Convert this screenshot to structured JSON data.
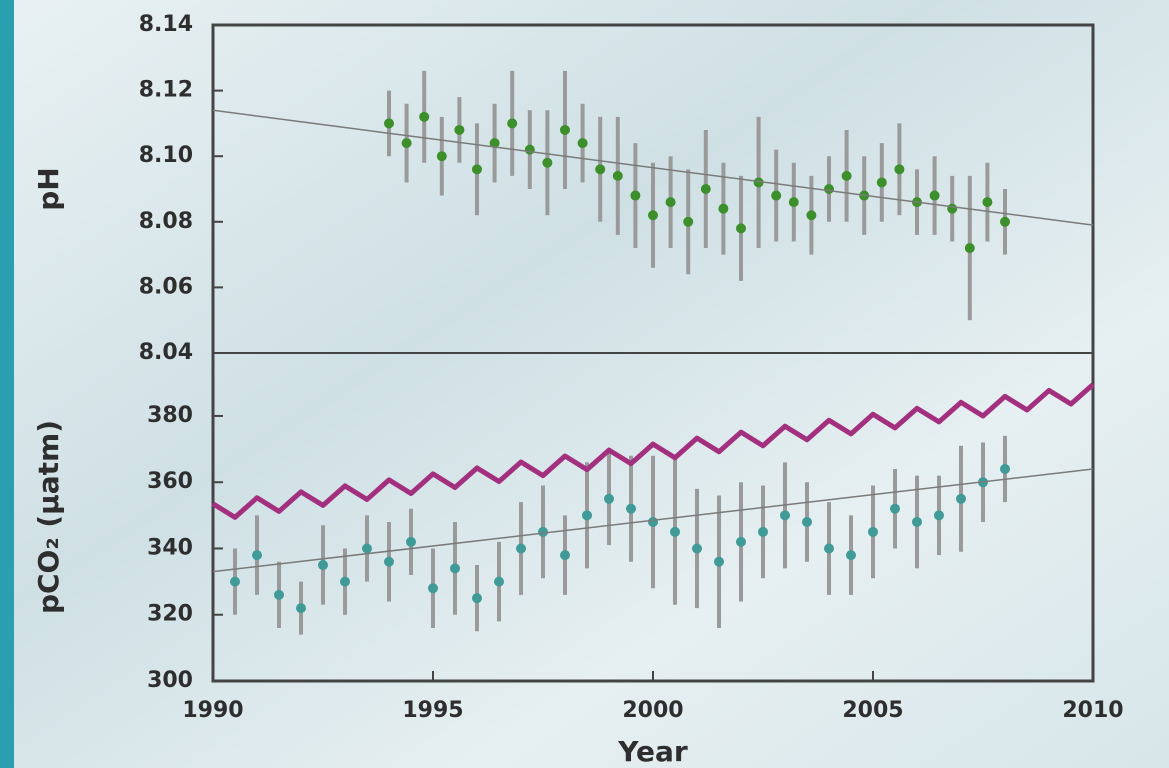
{
  "chart_data": [
    {
      "type": "scatter",
      "ylabel": "pH",
      "xlim": [
        1990,
        2010
      ],
      "ylim": [
        8.04,
        8.14
      ],
      "yticks": [
        8.04,
        8.06,
        8.08,
        {
          "value": 8.1,
          "label": "8.10"
        },
        8.12,
        8.14
      ],
      "series": [
        {
          "mark": "points",
          "color": "#3d8f2c",
          "x": [
            1994.0,
            1994.4,
            1994.8,
            1995.2,
            1995.6,
            1996.0,
            1996.4,
            1996.8,
            1997.2,
            1997.6,
            1998.0,
            1998.4,
            1998.8,
            1999.2,
            1999.6,
            2000.0,
            2000.4,
            2000.8,
            2001.2,
            2001.6,
            2002.0,
            2002.4,
            2002.8,
            2003.2,
            2003.6,
            2004.0,
            2004.4,
            2004.8,
            2005.2,
            2005.6,
            2006.0,
            2006.4,
            2006.8,
            2007.2,
            2007.6,
            2008.0
          ],
          "values": [
            8.11,
            8.104,
            8.112,
            8.1,
            8.108,
            8.096,
            8.104,
            8.11,
            8.102,
            8.098,
            8.108,
            8.104,
            8.096,
            8.094,
            8.088,
            8.082,
            8.086,
            8.08,
            8.09,
            8.084,
            8.078,
            8.092,
            8.088,
            8.086,
            8.082,
            8.09,
            8.094,
            8.088,
            8.092,
            8.096,
            8.086,
            8.088,
            8.084,
            8.072,
            8.086,
            8.08
          ],
          "errors": [
            0.01,
            0.012,
            0.014,
            0.012,
            0.01,
            0.014,
            0.012,
            0.016,
            0.012,
            0.016,
            0.018,
            0.012,
            0.016,
            0.018,
            0.016,
            0.016,
            0.014,
            0.016,
            0.018,
            0.014,
            0.016,
            0.02,
            0.014,
            0.012,
            0.012,
            0.01,
            0.014,
            0.012,
            0.012,
            0.014,
            0.01,
            0.012,
            0.01,
            0.022,
            0.012,
            0.01
          ]
        },
        {
          "mark": "line",
          "color": "#7a7a7a",
          "x": [
            1990,
            2010
          ],
          "values": [
            8.114,
            8.079
          ]
        }
      ]
    },
    {
      "type": "scatter",
      "ylabel": "pCO₂ (µatm)",
      "xlabel": "Year",
      "xlim": [
        1990,
        2010
      ],
      "ylim": [
        300,
        399
      ],
      "xticks": [
        1990,
        1995,
        2000,
        2005,
        2010
      ],
      "yticks": [
        300,
        320,
        340,
        360,
        380
      ],
      "series": [
        {
          "mark": "points",
          "color": "#3f9a98",
          "x": [
            1990.5,
            1991.0,
            1991.5,
            1992.0,
            1992.5,
            1993.0,
            1993.5,
            1994.0,
            1994.5,
            1995.0,
            1995.5,
            1996.0,
            1996.5,
            1997.0,
            1997.5,
            1998.0,
            1998.5,
            1999.0,
            1999.5,
            2000.0,
            2000.5,
            2001.0,
            2001.5,
            2002.0,
            2002.5,
            2003.0,
            2003.5,
            2004.0,
            2004.5,
            2005.0,
            2005.5,
            2006.0,
            2006.5,
            2007.0,
            2007.5,
            2008.0
          ],
          "values": [
            330,
            338,
            326,
            322,
            335,
            330,
            340,
            336,
            342,
            328,
            334,
            325,
            330,
            340,
            345,
            338,
            350,
            355,
            352,
            348,
            345,
            340,
            336,
            342,
            345,
            350,
            348,
            340,
            338,
            345,
            352,
            348,
            350,
            355,
            360,
            364
          ],
          "errors": [
            10,
            12,
            10,
            8,
            12,
            10,
            10,
            12,
            10,
            12,
            14,
            10,
            12,
            14,
            14,
            12,
            16,
            14,
            16,
            20,
            22,
            18,
            20,
            18,
            14,
            16,
            12,
            14,
            12,
            14,
            12,
            14,
            12,
            16,
            12,
            10
          ]
        },
        {
          "mark": "line",
          "color": "#7a7a7a",
          "x": [
            1990,
            2010
          ],
          "values": [
            333,
            364
          ]
        },
        {
          "mark": "line",
          "color": "#a3307f",
          "x": [
            1990.0,
            1990.5,
            1991.0,
            1991.5,
            1992.0,
            1992.5,
            1993.0,
            1993.5,
            1994.0,
            1994.5,
            1995.0,
            1995.5,
            1996.0,
            1996.5,
            1997.0,
            1997.5,
            1998.0,
            1998.5,
            1999.0,
            1999.5,
            2000.0,
            2000.5,
            2001.0,
            2001.5,
            2002.0,
            2002.5,
            2003.0,
            2003.5,
            2004.0,
            2004.5,
            2005.0,
            2005.5,
            2006.0,
            2006.5,
            2007.0,
            2007.5,
            2008.0,
            2008.5,
            2009.0,
            2009.5,
            2010.0
          ],
          "values": [
            353.5,
            349.4,
            355.3,
            351.2,
            357.1,
            353.0,
            358.9,
            354.8,
            360.7,
            356.6,
            362.5,
            358.4,
            364.3,
            360.2,
            366.1,
            362.0,
            367.9,
            363.8,
            369.7,
            365.6,
            371.5,
            367.4,
            373.3,
            369.2,
            375.1,
            371.0,
            376.9,
            372.8,
            378.7,
            374.6,
            380.5,
            376.4,
            382.3,
            378.2,
            384.1,
            380.0,
            385.9,
            381.8,
            387.7,
            383.6,
            389.5
          ]
        }
      ]
    }
  ]
}
